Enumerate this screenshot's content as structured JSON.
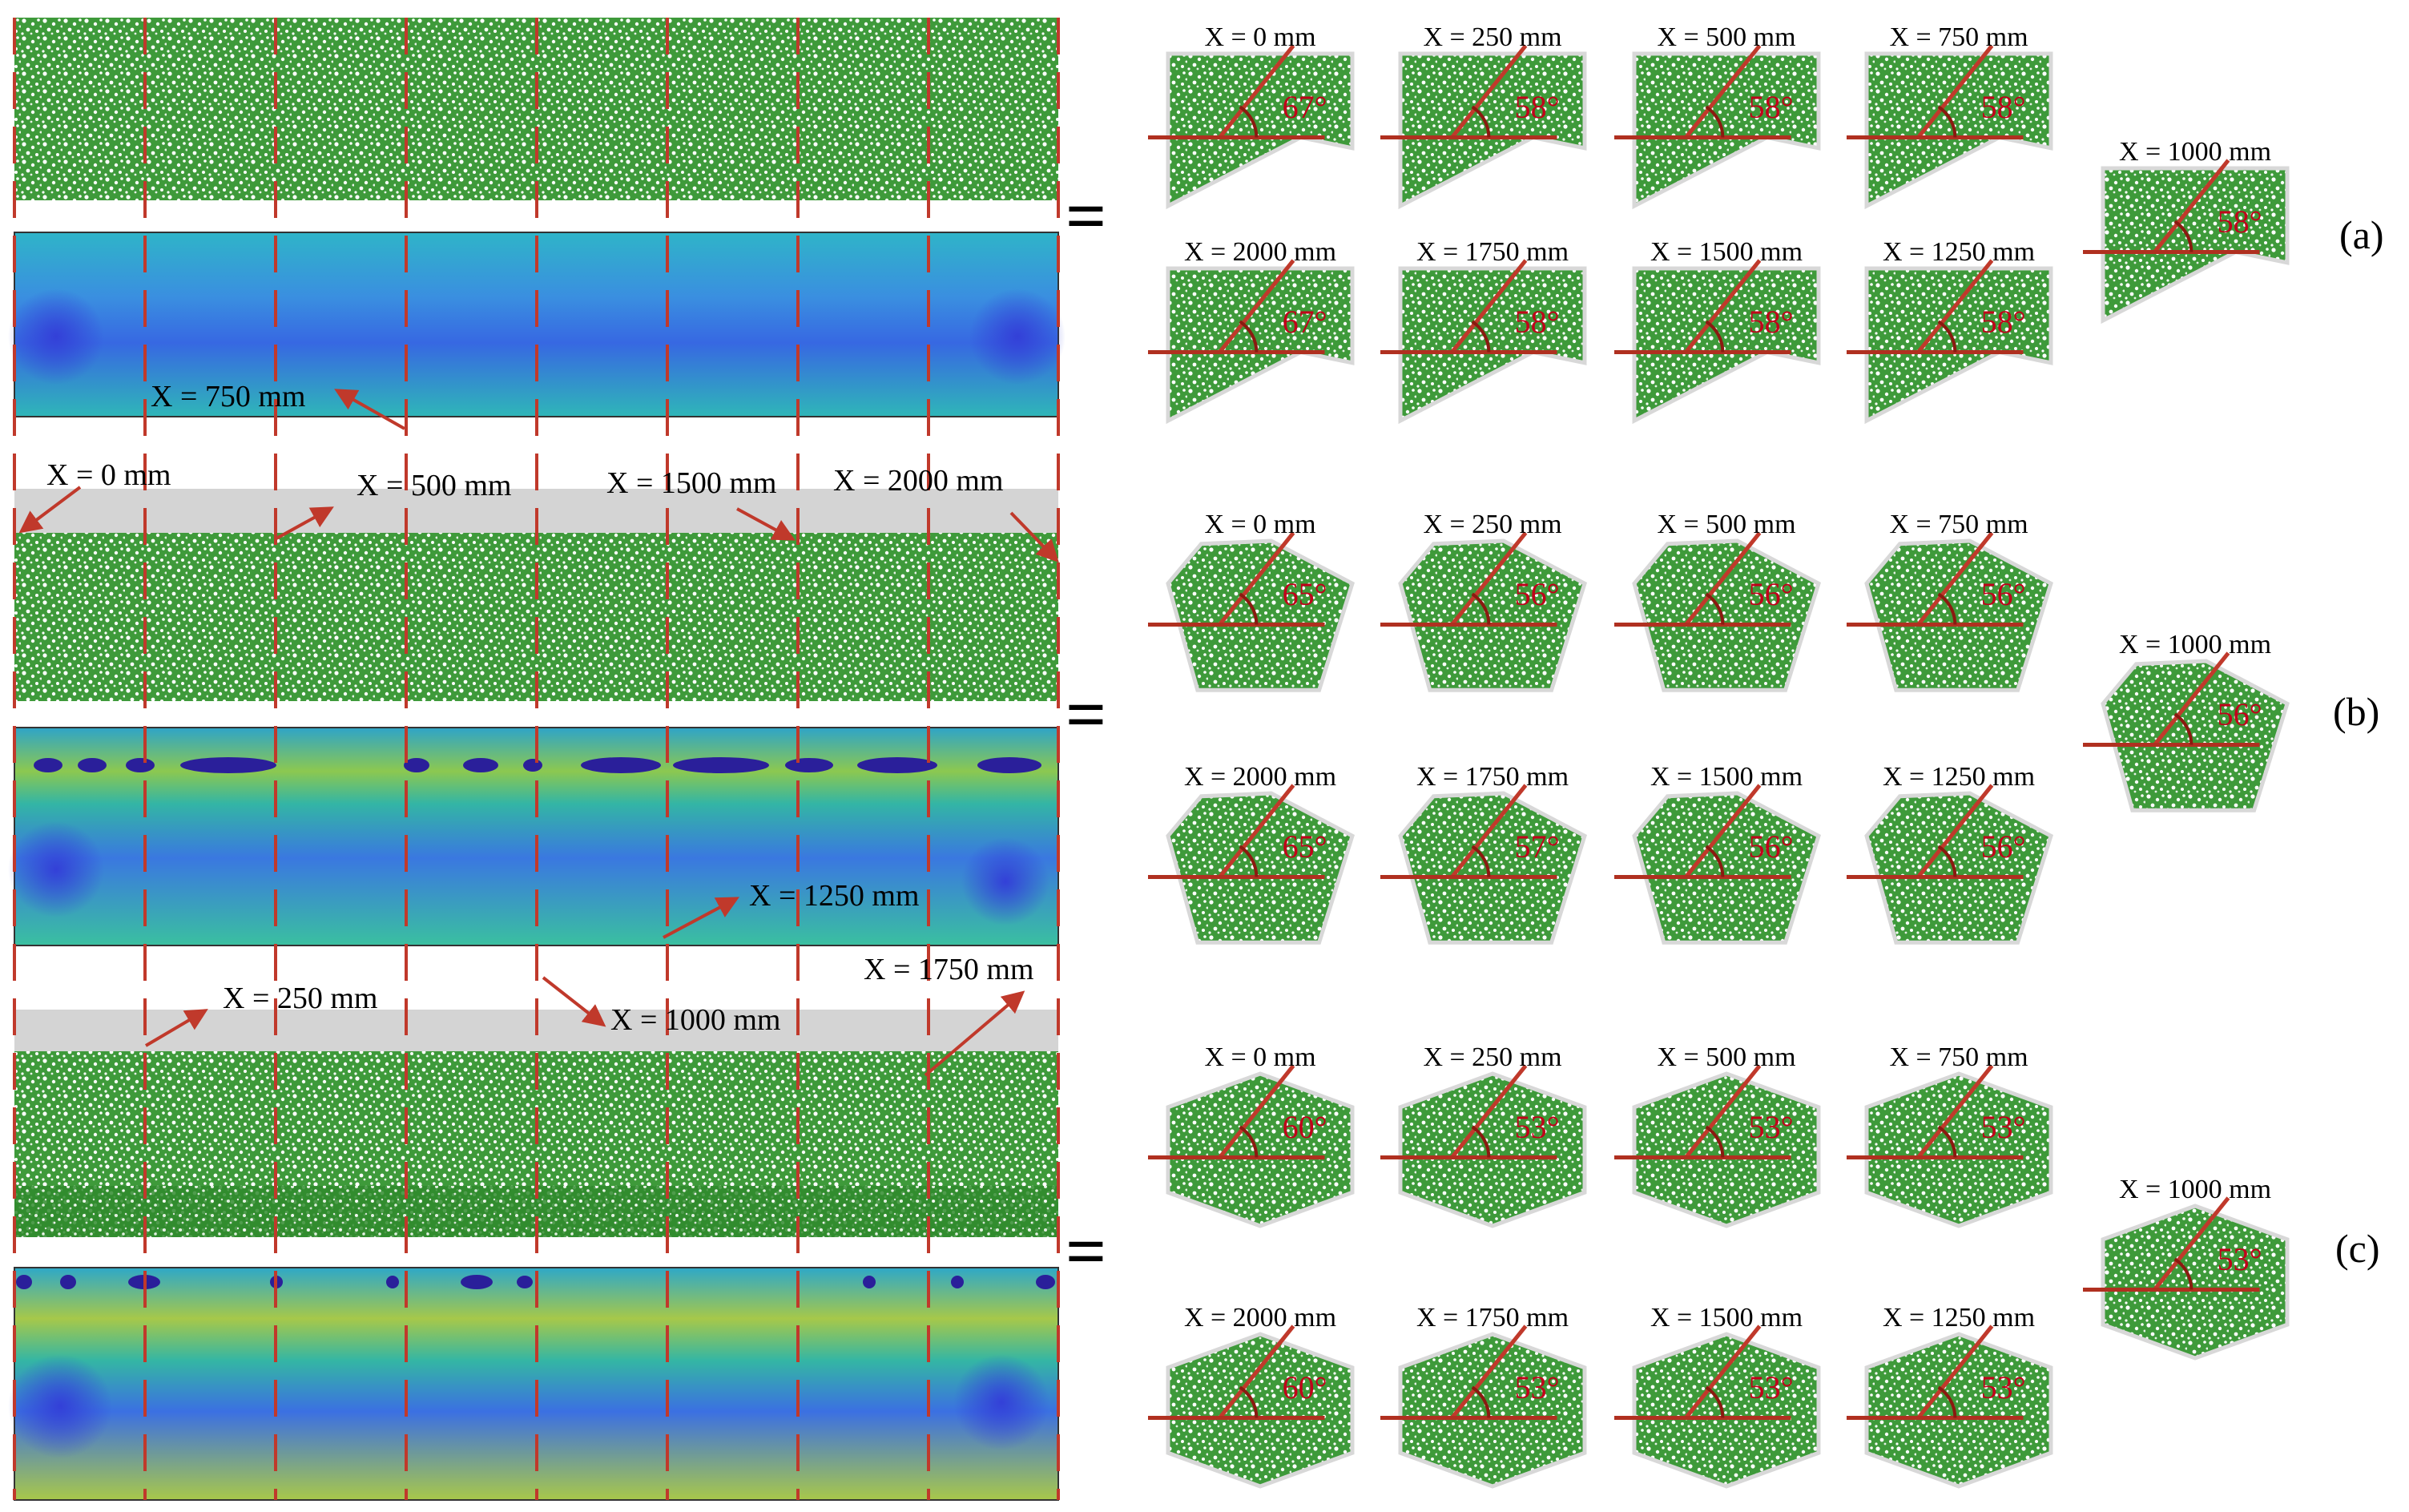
{
  "figure": {
    "rows": [
      {
        "id": "a",
        "panel_label": "(a)",
        "equals": "=",
        "cross_sections": [
          {
            "x": "X = 0 mm",
            "angle": "67°"
          },
          {
            "x": "X = 250 mm",
            "angle": "58°"
          },
          {
            "x": "X = 500 mm",
            "angle": "58°"
          },
          {
            "x": "X = 750 mm",
            "angle": "58°"
          },
          {
            "x": "X = 2000 mm",
            "angle": "67°"
          },
          {
            "x": "X = 1750 mm",
            "angle": "58°"
          },
          {
            "x": "X = 1500 mm",
            "angle": "58°"
          },
          {
            "x": "X = 1250 mm",
            "angle": "58°"
          },
          {
            "x": "X = 1000 mm",
            "angle": "58°"
          }
        ]
      },
      {
        "id": "b",
        "panel_label": "(b)",
        "equals": "=",
        "cross_sections": [
          {
            "x": "X = 0 mm",
            "angle": "65°"
          },
          {
            "x": "X = 250 mm",
            "angle": "56°"
          },
          {
            "x": "X = 500 mm",
            "angle": "56°"
          },
          {
            "x": "X = 750 mm",
            "angle": "56°"
          },
          {
            "x": "X = 2000 mm",
            "angle": "65°"
          },
          {
            "x": "X = 1750 mm",
            "angle": "57°"
          },
          {
            "x": "X = 1500 mm",
            "angle": "56°"
          },
          {
            "x": "X = 1250 mm",
            "angle": "56°"
          },
          {
            "x": "X = 1000 mm",
            "angle": "56°"
          }
        ]
      },
      {
        "id": "c",
        "panel_label": "(c)",
        "equals": "=",
        "cross_sections": [
          {
            "x": "X = 0 mm",
            "angle": "60°"
          },
          {
            "x": "X = 250 mm",
            "angle": "53°"
          },
          {
            "x": "X = 500 mm",
            "angle": "53°"
          },
          {
            "x": "X = 750 mm",
            "angle": "53°"
          },
          {
            "x": "X = 2000 mm",
            "angle": "60°"
          },
          {
            "x": "X = 1750 mm",
            "angle": "53°"
          },
          {
            "x": "X = 1500 mm",
            "angle": "53°"
          },
          {
            "x": "X = 1250 mm",
            "angle": "53°"
          },
          {
            "x": "X = 1000 mm",
            "angle": "53°"
          }
        ]
      }
    ],
    "position_labels": [
      "X = 750 mm",
      "X = 0 mm",
      "X = 500 mm",
      "X = 1500 mm",
      "X = 2000 mm",
      "X = 1250 mm",
      "X = 250 mm",
      "X = 1000 mm",
      "X = 1750 mm"
    ],
    "colors": {
      "particle": "#2e8b2e",
      "particle_dark": "#1f7a1f",
      "arrow": "#c0392b",
      "dashed_line": "#c0392b",
      "angle_text": "#c0001a",
      "hull_outline": "#d8d8d8",
      "gray_band": "#d4d4d4"
    }
  }
}
